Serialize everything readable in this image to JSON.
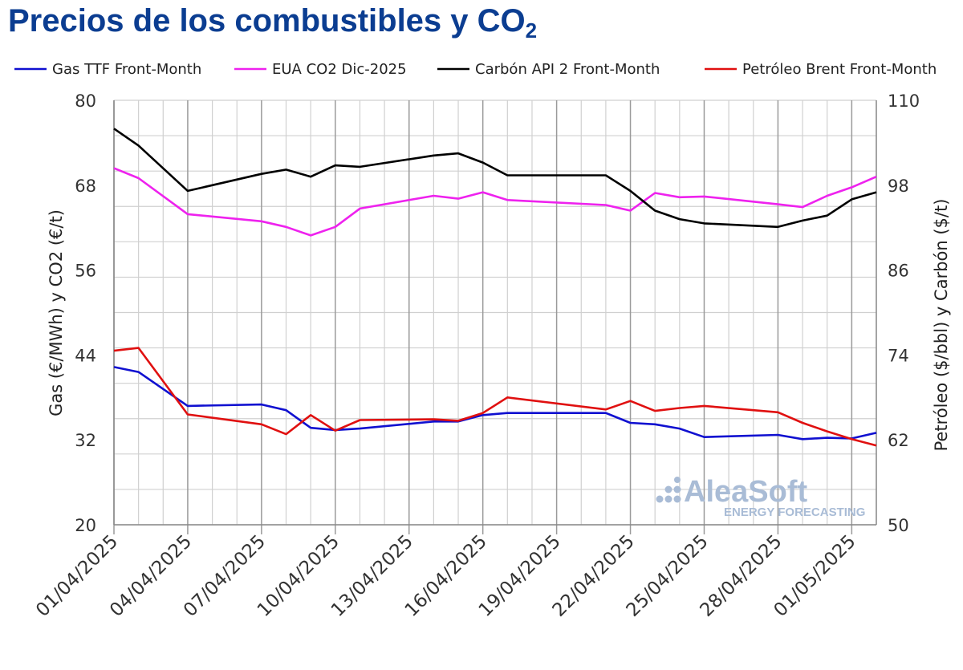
{
  "title": {
    "main": "Precios de los combustibles y CO",
    "sub": "2"
  },
  "watermark": {
    "brand": "AleaSoft",
    "tagline": "ENERGY FORECASTING",
    "color": "#a9bcd6"
  },
  "chart_data": {
    "type": "line",
    "xlabel": "",
    "ylabel_left": "Gas (€/MWh) y CO2 (€/t)",
    "ylabel_right": "Petróleo ($/bbl) y Carbón ($/t)",
    "ylim_left": [
      20,
      80
    ],
    "ylim_right": [
      50,
      110
    ],
    "yticks_left": [
      "20",
      "32",
      "44",
      "56",
      "68",
      "80"
    ],
    "yticks_right": [
      "50",
      "62",
      "74",
      "86",
      "98",
      "110"
    ],
    "grid": true,
    "legend": "top",
    "x_dates": [
      "01/04/2025",
      "02/04/2025",
      "03/04/2025",
      "04/04/2025",
      "05/04/2025",
      "06/04/2025",
      "07/04/2025",
      "08/04/2025",
      "09/04/2025",
      "10/04/2025",
      "11/04/2025",
      "12/04/2025",
      "13/04/2025",
      "14/04/2025",
      "15/04/2025",
      "16/04/2025",
      "17/04/2025",
      "18/04/2025",
      "19/04/2025",
      "20/04/2025",
      "21/04/2025",
      "22/04/2025",
      "23/04/2025",
      "24/04/2025",
      "25/04/2025",
      "26/04/2025",
      "27/04/2025",
      "28/04/2025",
      "29/04/2025",
      "30/04/2025",
      "01/05/2025",
      "02/05/2025"
    ],
    "x_tick_labels": [
      "01/04/2025",
      "04/04/2025",
      "07/04/2025",
      "10/04/2025",
      "13/04/2025",
      "16/04/2025",
      "19/04/2025",
      "22/04/2025",
      "25/04/2025",
      "28/04/2025",
      "01/05/2025"
    ],
    "series": [
      {
        "name": "Gas TTF Front-Month",
        "axis": "left",
        "color": "#1010d0",
        "points": [
          [
            "01/04/2025",
            42.3
          ],
          [
            "02/04/2025",
            41.6
          ],
          [
            "04/04/2025",
            36.8
          ],
          [
            "07/04/2025",
            37.0
          ],
          [
            "08/04/2025",
            36.2
          ],
          [
            "09/04/2025",
            33.7
          ],
          [
            "10/04/2025",
            33.4
          ],
          [
            "11/04/2025",
            33.6
          ],
          [
            "14/04/2025",
            34.6
          ],
          [
            "15/04/2025",
            34.6
          ],
          [
            "16/04/2025",
            35.5
          ],
          [
            "17/04/2025",
            35.8
          ],
          [
            "21/04/2025",
            35.8
          ],
          [
            "22/04/2025",
            34.4
          ],
          [
            "23/04/2025",
            34.2
          ],
          [
            "24/04/2025",
            33.6
          ],
          [
            "25/04/2025",
            32.4
          ],
          [
            "28/04/2025",
            32.7
          ],
          [
            "29/04/2025",
            32.1
          ],
          [
            "30/04/2025",
            32.3
          ],
          [
            "01/05/2025",
            32.2
          ],
          [
            "02/05/2025",
            33.0
          ]
        ]
      },
      {
        "name": "EUA CO2 Dic-2025",
        "axis": "left",
        "color": "#ee22ee",
        "points": [
          [
            "01/04/2025",
            70.4
          ],
          [
            "02/04/2025",
            69.0
          ],
          [
            "04/04/2025",
            63.9
          ],
          [
            "07/04/2025",
            62.9
          ],
          [
            "08/04/2025",
            62.1
          ],
          [
            "09/04/2025",
            60.9
          ],
          [
            "10/04/2025",
            62.1
          ],
          [
            "11/04/2025",
            64.7
          ],
          [
            "14/04/2025",
            66.5
          ],
          [
            "15/04/2025",
            66.1
          ],
          [
            "16/04/2025",
            67.0
          ],
          [
            "17/04/2025",
            65.9
          ],
          [
            "21/04/2025",
            65.2
          ],
          [
            "22/04/2025",
            64.4
          ],
          [
            "23/04/2025",
            66.9
          ],
          [
            "24/04/2025",
            66.3
          ],
          [
            "25/04/2025",
            66.4
          ],
          [
            "28/04/2025",
            65.3
          ],
          [
            "29/04/2025",
            64.9
          ],
          [
            "30/04/2025",
            66.5
          ],
          [
            "01/05/2025",
            67.7
          ],
          [
            "02/05/2025",
            69.2
          ]
        ]
      },
      {
        "name": "Carbón API 2 Front-Month",
        "axis": "right",
        "color": "#000000",
        "points": [
          [
            "01/04/2025",
            106.0
          ],
          [
            "02/04/2025",
            103.6
          ],
          [
            "04/04/2025",
            97.2
          ],
          [
            "07/04/2025",
            99.6
          ],
          [
            "08/04/2025",
            100.2
          ],
          [
            "09/04/2025",
            99.2
          ],
          [
            "10/04/2025",
            100.8
          ],
          [
            "11/04/2025",
            100.6
          ],
          [
            "14/04/2025",
            102.2
          ],
          [
            "15/04/2025",
            102.5
          ],
          [
            "16/04/2025",
            101.2
          ],
          [
            "17/04/2025",
            99.4
          ],
          [
            "21/04/2025",
            99.4
          ],
          [
            "22/04/2025",
            97.2
          ],
          [
            "23/04/2025",
            94.4
          ],
          [
            "24/04/2025",
            93.2
          ],
          [
            "25/04/2025",
            92.6
          ],
          [
            "28/04/2025",
            92.1
          ],
          [
            "29/04/2025",
            93.0
          ],
          [
            "30/04/2025",
            93.7
          ],
          [
            "01/05/2025",
            96.0
          ],
          [
            "02/05/2025",
            97.0
          ]
        ]
      },
      {
        "name": "Petróleo Brent Front-Month",
        "axis": "right",
        "color": "#e01010",
        "points": [
          [
            "01/04/2025",
            74.6
          ],
          [
            "02/04/2025",
            75.0
          ],
          [
            "04/04/2025",
            65.6
          ],
          [
            "07/04/2025",
            64.2
          ],
          [
            "08/04/2025",
            62.8
          ],
          [
            "09/04/2025",
            65.5
          ],
          [
            "10/04/2025",
            63.3
          ],
          [
            "11/04/2025",
            64.8
          ],
          [
            "14/04/2025",
            64.9
          ],
          [
            "15/04/2025",
            64.7
          ],
          [
            "16/04/2025",
            65.8
          ],
          [
            "17/04/2025",
            68.0
          ],
          [
            "21/04/2025",
            66.3
          ],
          [
            "22/04/2025",
            67.5
          ],
          [
            "23/04/2025",
            66.1
          ],
          [
            "24/04/2025",
            66.5
          ],
          [
            "25/04/2025",
            66.8
          ],
          [
            "28/04/2025",
            65.9
          ],
          [
            "29/04/2025",
            64.4
          ],
          [
            "30/04/2025",
            63.2
          ],
          [
            "01/05/2025",
            62.1
          ],
          [
            "02/05/2025",
            61.2
          ]
        ]
      }
    ]
  }
}
